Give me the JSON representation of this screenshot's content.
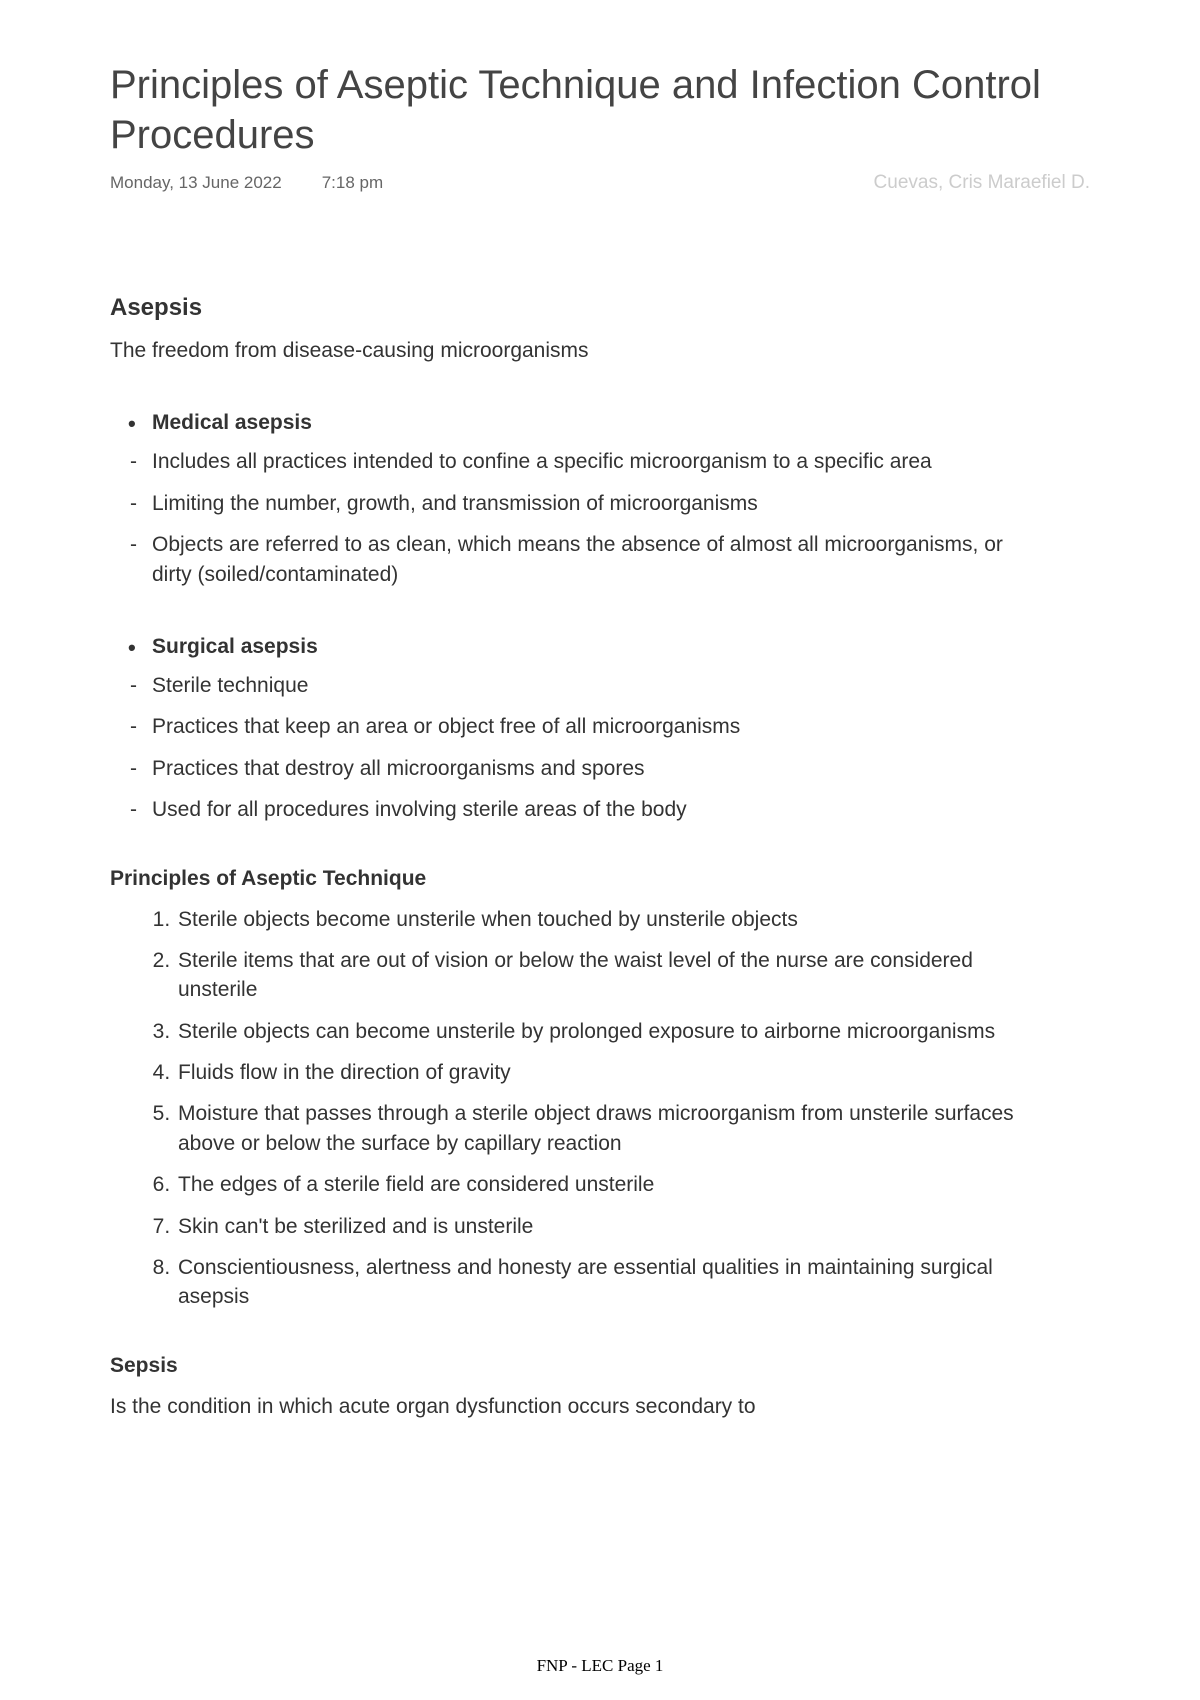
{
  "title": "Principles of Aseptic Technique and Infection Control Procedures",
  "date": "Monday, 13 June 2022",
  "time": "7:18 pm",
  "author": "Cuevas, Cris Maraefiel D.",
  "section1": {
    "heading": "Asepsis",
    "subtitle": "The freedom from disease-causing microorganisms",
    "medical": {
      "heading": "Medical asepsis",
      "items": [
        "Includes all practices intended to confine a specific microorganism to a specific area",
        "Limiting the number, growth, and transmission of microorganisms",
        "Objects are referred to as clean, which means the absence of almost all microorganisms, or dirty (soiled/contaminated)"
      ]
    },
    "surgical": {
      "heading": "Surgical asepsis",
      "items": [
        "Sterile technique",
        "Practices that keep an area or object free of all microorganisms",
        "Practices that destroy all microorganisms and spores",
        "Used for all procedures involving sterile areas of the body"
      ]
    }
  },
  "section2": {
    "heading": "Principles of Aseptic Technique",
    "items": [
      "Sterile objects become unsterile when touched by unsterile objects",
      "Sterile items that are out of vision or below the waist level of the nurse are considered unsterile",
      "Sterile objects can become unsterile by prolonged exposure to airborne microorganisms",
      "Fluids flow in the direction of gravity",
      "Moisture that passes through a sterile object draws microorganism from unsterile surfaces above or below the surface by capillary reaction",
      "The edges of a sterile field are considered unsterile",
      "Skin can't be sterilized and is unsterile",
      "Conscientiousness, alertness and honesty are essential qualities in maintaining surgical asepsis"
    ]
  },
  "section3": {
    "heading": "Sepsis",
    "text": "Is the condition in which acute organ dysfunction occurs secondary to"
  },
  "footer": "FNP - LEC Page 1"
}
